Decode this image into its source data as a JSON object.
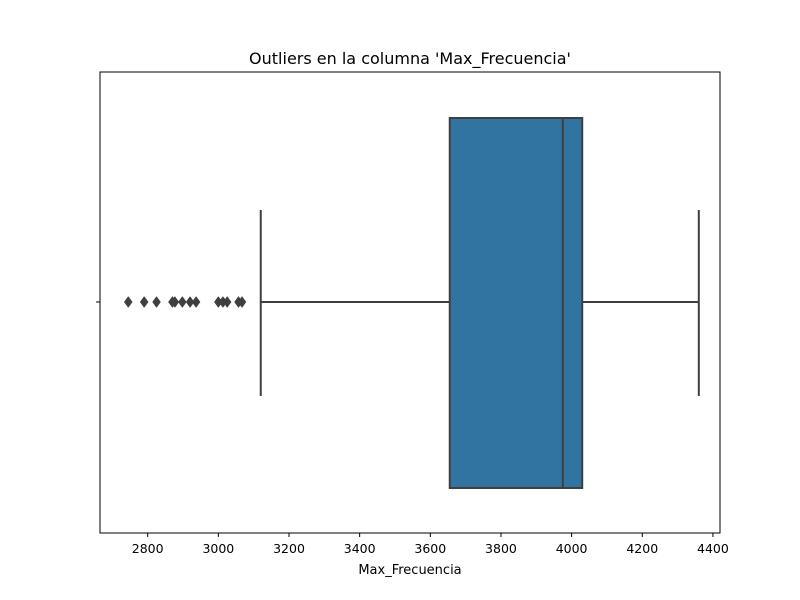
{
  "chart_data": {
    "type": "box",
    "title": "Outliers en la columna 'Max_Frecuencia'",
    "xlabel": "Max_Frecuencia",
    "ylabel": "",
    "orientation": "horizontal",
    "xlim": [
      2665,
      4420
    ],
    "x_ticks": [
      2800,
      3000,
      3200,
      3400,
      3600,
      3800,
      4000,
      4200,
      4400
    ],
    "x_tick_labels": [
      "2800",
      "3000",
      "3200",
      "3400",
      "3600",
      "3800",
      "4000",
      "4200",
      "4400"
    ],
    "box": {
      "whisker_low": 3120,
      "q1": 3655,
      "median": 3975,
      "q3": 4030,
      "whisker_high": 4360
    },
    "outliers": [
      2745,
      2790,
      2825,
      2870,
      2877,
      2898,
      2920,
      2937,
      3000,
      3013,
      3025,
      3057,
      3067
    ],
    "grid": false,
    "legend": "none",
    "colors": {
      "box_fill": "#3274a1",
      "line": "#3f3f3f",
      "outlier": "#3f3f3f",
      "axes": "#000000",
      "background": "#ffffff"
    }
  }
}
